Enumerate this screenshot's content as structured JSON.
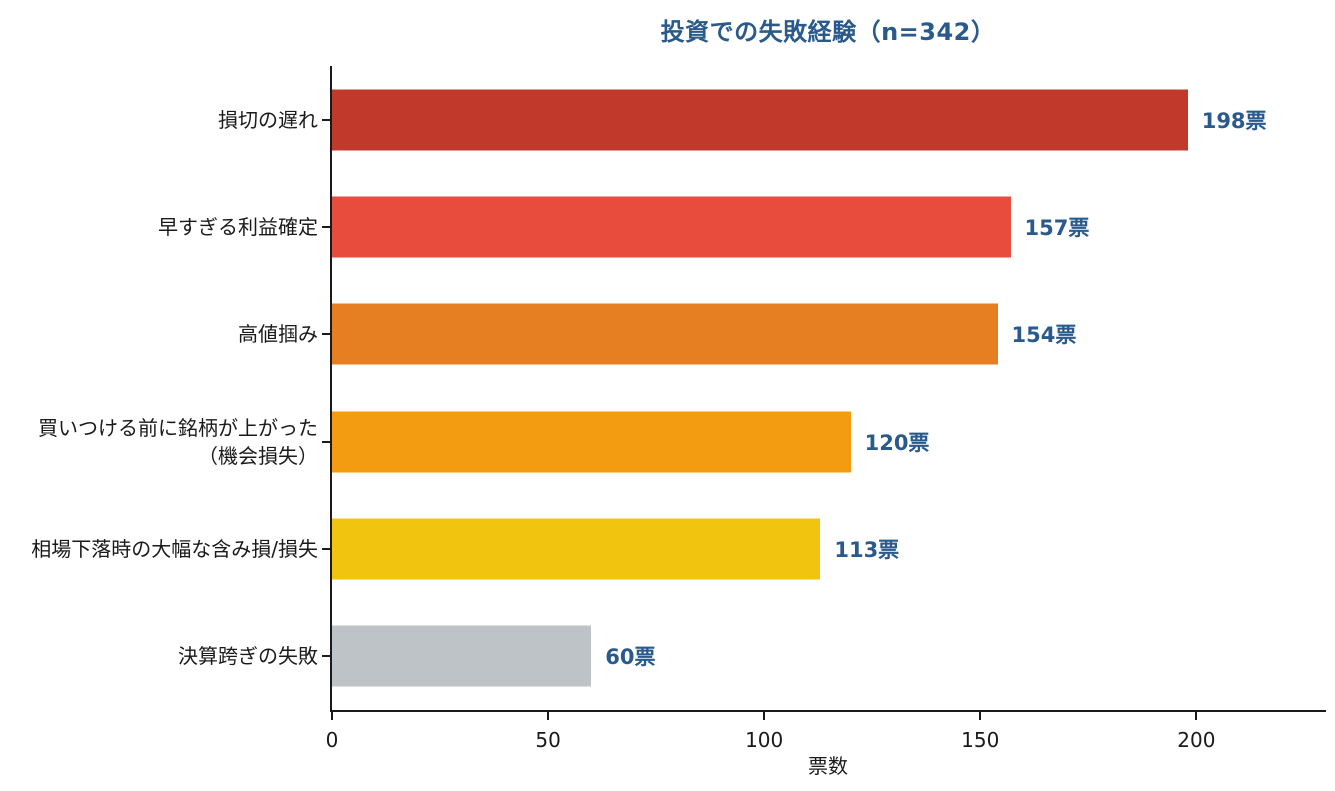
{
  "chart_data": {
    "type": "bar",
    "orientation": "horizontal",
    "title": "投資での失敗経験（n=342）",
    "xlabel": "票数",
    "ylabel": "",
    "categories": [
      "損切の遅れ",
      "早すぎる利益確定",
      "高値掴み",
      "買いつける前に銘柄が上がった\n（機会損失）",
      "相場下落時の大幅な含み損/損失",
      "決算跨ぎの失敗"
    ],
    "values": [
      198,
      157,
      154,
      120,
      113,
      60
    ],
    "value_labels": [
      "198票",
      "157票",
      "154票",
      "120票",
      "113票",
      "60票"
    ],
    "bar_colors": [
      "#c0392b",
      "#e74c3c",
      "#e67e22",
      "#f39c12",
      "#f1c40f",
      "#bdc3c7"
    ],
    "x_ticks": [
      0,
      50,
      100,
      150,
      200
    ],
    "xlim": [
      0,
      230
    ],
    "grid": false,
    "legend": "none",
    "title_color": "#2a5a8c",
    "value_label_color": "#2a5a8c",
    "axis_color": "#1a1a1a"
  }
}
